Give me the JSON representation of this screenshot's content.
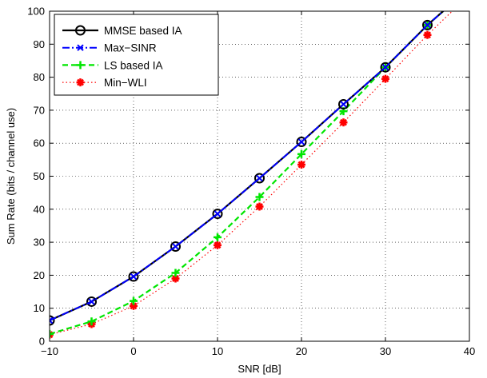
{
  "chart_data": {
    "type": "line",
    "title": "",
    "xlabel": "SNR [dB]",
    "ylabel": "Sum Rate (bits / channel use)",
    "xlim": [
      -10,
      40
    ],
    "ylim": [
      0,
      100
    ],
    "xticks": [
      -10,
      0,
      10,
      20,
      30,
      40
    ],
    "yticks": [
      0,
      10,
      20,
      30,
      40,
      50,
      60,
      70,
      80,
      90,
      100
    ],
    "grid": true,
    "legend_position": "top-left",
    "x": [
      -10,
      -5,
      0,
      5,
      10,
      15,
      20,
      25,
      30,
      35,
      40
    ],
    "series": [
      {
        "name": "MMSE based IA",
        "values": [
          6.3,
          12.0,
          19.6,
          28.7,
          38.6,
          49.4,
          60.4,
          71.8,
          83.0,
          95.8,
          107.0
        ],
        "color": "#000000",
        "line_style": "solid",
        "marker": "circle"
      },
      {
        "name": "Max−SINR",
        "values": [
          6.3,
          12.0,
          19.6,
          28.7,
          38.6,
          49.4,
          60.4,
          71.8,
          83.0,
          95.8,
          107.0
        ],
        "color": "#0000ff",
        "line_style": "dashdot",
        "marker": "x"
      },
      {
        "name": "LS based IA",
        "values": [
          2.2,
          6.0,
          12.2,
          20.7,
          31.5,
          43.7,
          56.7,
          69.7,
          83.0,
          95.8,
          107.0
        ],
        "color": "#00e600",
        "line_style": "dashed",
        "marker": "plus"
      },
      {
        "name": "Min−WLI",
        "values": [
          2.0,
          5.2,
          10.7,
          19.0,
          29.1,
          40.8,
          53.5,
          66.3,
          79.5,
          92.8,
          105.0
        ],
        "color": "#ff0000",
        "line_style": "dotted",
        "marker": "asterisk"
      }
    ]
  }
}
